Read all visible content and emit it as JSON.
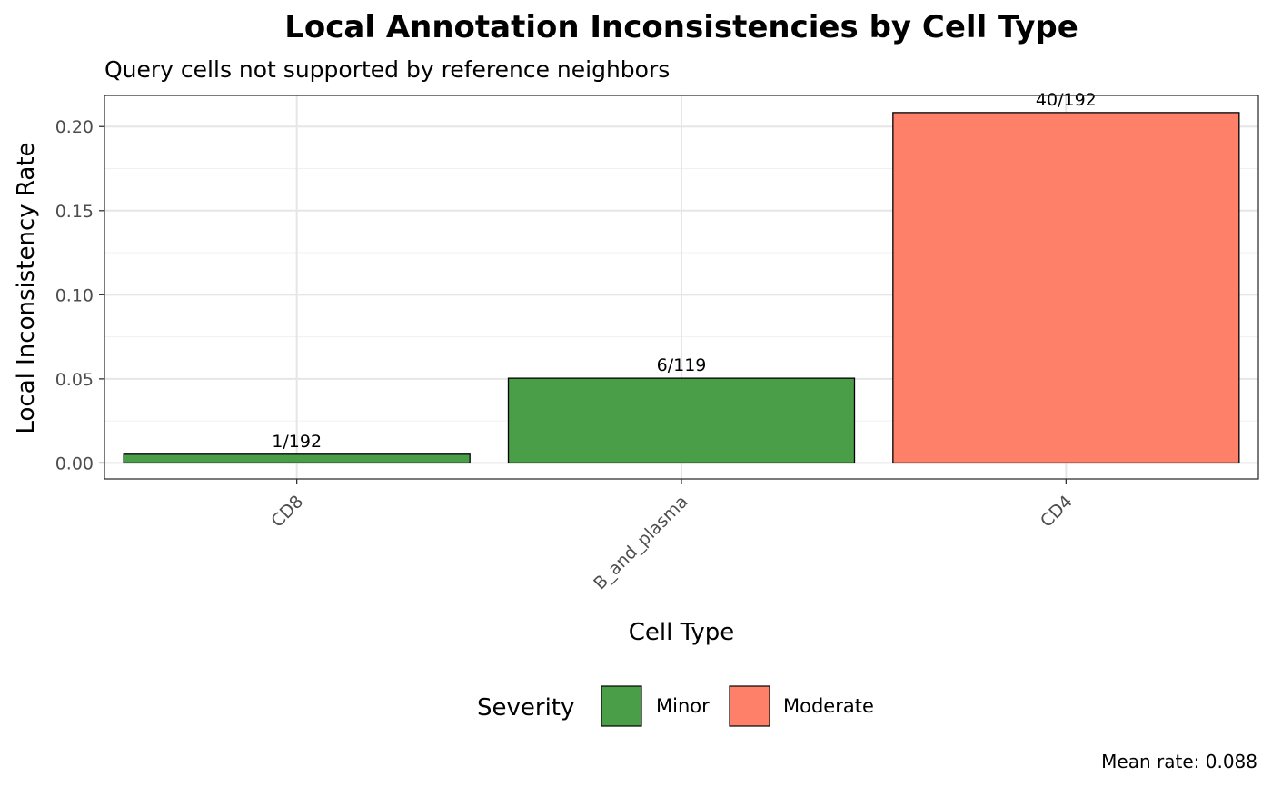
{
  "chart_data": {
    "type": "bar",
    "title": "Local Annotation Inconsistencies by Cell Type",
    "subtitle": "Query cells not supported by reference neighbors",
    "xlabel": "Cell Type",
    "ylabel": "Local Inconsistency Rate",
    "ylim": [
      -0.0095,
      0.2185
    ],
    "yticks": [
      "0.00",
      "0.05",
      "0.10",
      "0.15",
      "0.20"
    ],
    "ytick_values": [
      0,
      0.05,
      0.1,
      0.15,
      0.2
    ],
    "categories": [
      "CD8",
      "B_and_plasma",
      "CD4"
    ],
    "values": [
      0.0052,
      0.0504,
      0.2083
    ],
    "bar_labels": [
      "1/192",
      "6/119",
      "40/192"
    ],
    "severity": [
      "Minor",
      "Minor",
      "Moderate"
    ],
    "grid": true,
    "legend": {
      "title": "Severity",
      "placement": "bottom",
      "entries": [
        {
          "label": "Minor",
          "color": "#4a9e47"
        },
        {
          "label": "Moderate",
          "color": "#ff8069"
        }
      ]
    },
    "caption": "Mean rate: 0.088"
  }
}
